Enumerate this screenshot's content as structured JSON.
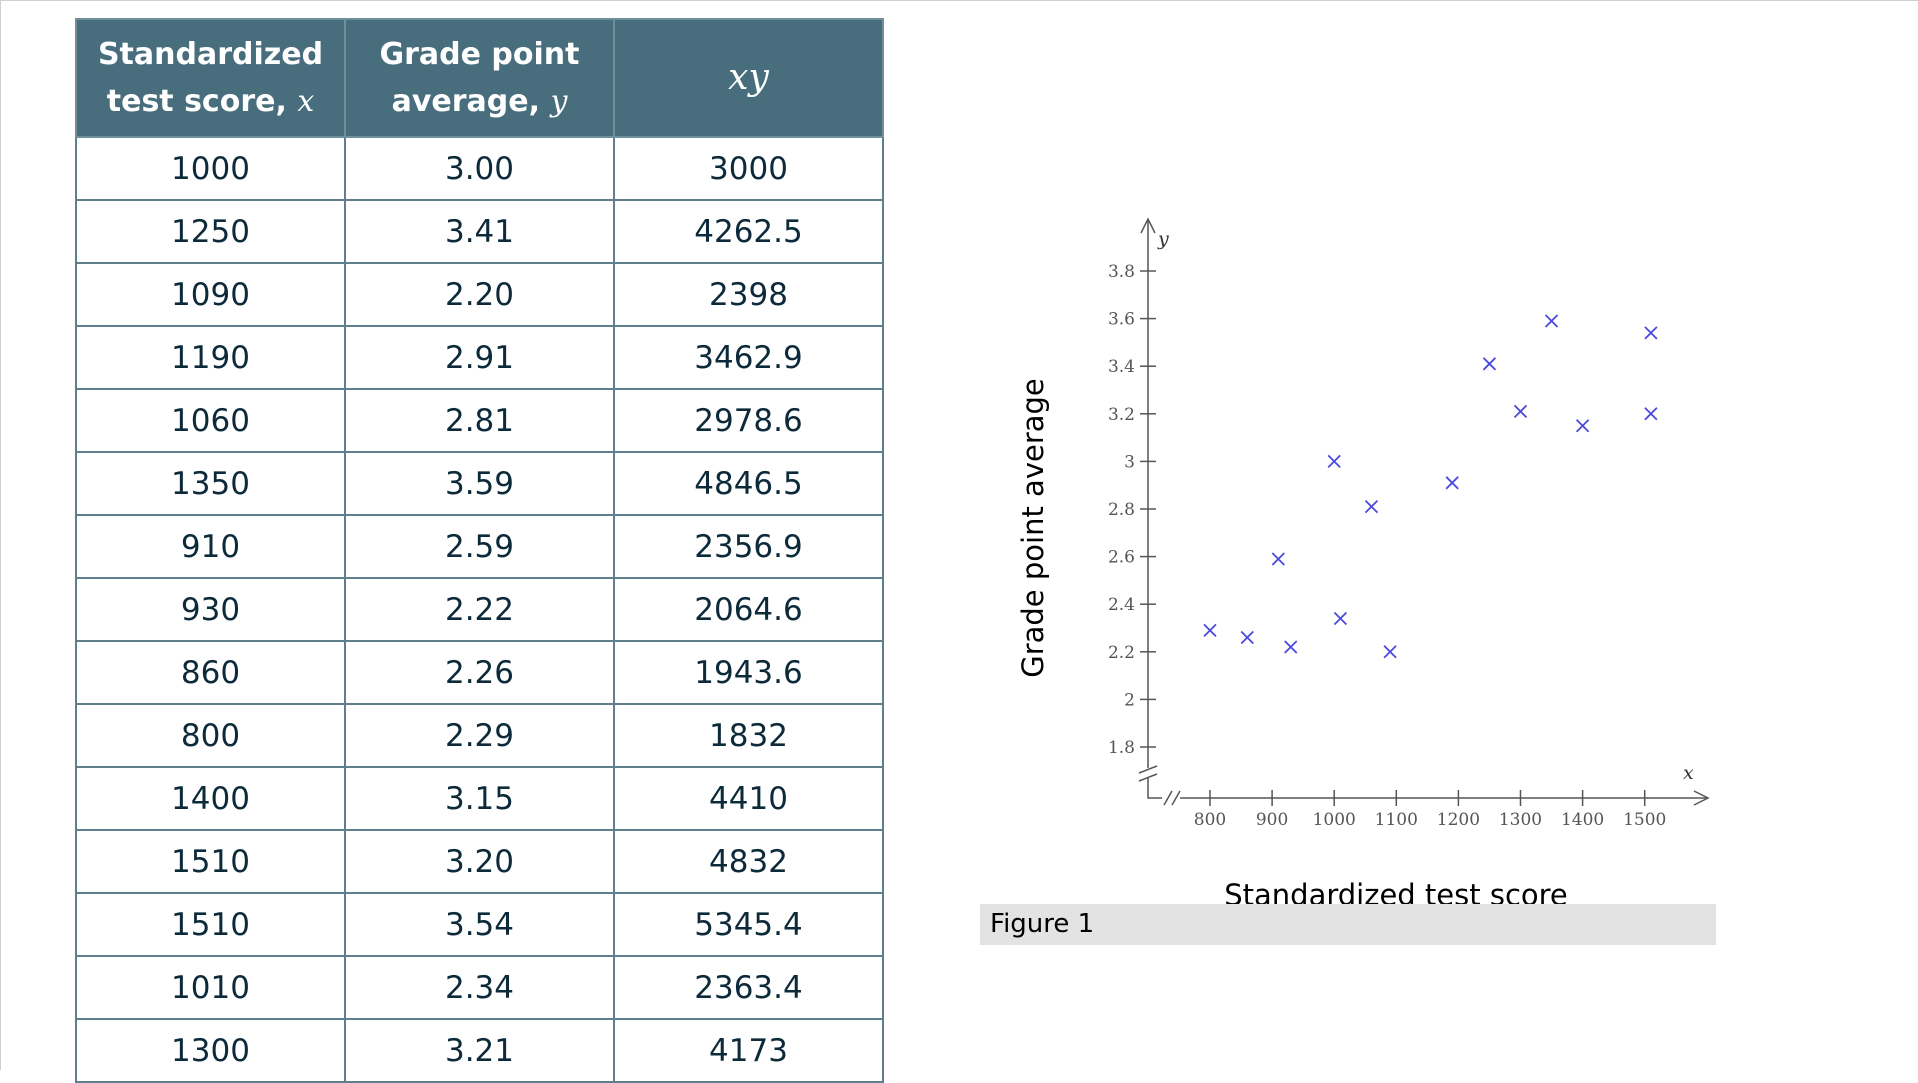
{
  "table": {
    "headers": [
      {
        "line1": "Standardized",
        "line2": "test score,",
        "var": "x"
      },
      {
        "line1": "Grade point",
        "line2": "average,",
        "var": "y"
      },
      {
        "var": "xy"
      }
    ],
    "rows": [
      [
        "1000",
        "3.00",
        "3000"
      ],
      [
        "1250",
        "3.41",
        "4262.5"
      ],
      [
        "1090",
        "2.20",
        "2398"
      ],
      [
        "1190",
        "2.91",
        "3462.9"
      ],
      [
        "1060",
        "2.81",
        "2978.6"
      ],
      [
        "1350",
        "3.59",
        "4846.5"
      ],
      [
        "910",
        "2.59",
        "2356.9"
      ],
      [
        "930",
        "2.22",
        "2064.6"
      ],
      [
        "860",
        "2.26",
        "1943.6"
      ],
      [
        "800",
        "2.29",
        "1832"
      ],
      [
        "1400",
        "3.15",
        "4410"
      ],
      [
        "1510",
        "3.20",
        "4832"
      ],
      [
        "1510",
        "3.54",
        "5345.4"
      ],
      [
        "1010",
        "2.34",
        "2363.4"
      ],
      [
        "1300",
        "3.21",
        "4173"
      ]
    ]
  },
  "chart_data": {
    "type": "scatter",
    "xlabel": "Standardized test score",
    "ylabel": "Grade point average",
    "x_axis_var": "x",
    "y_axis_var": "y",
    "xlim": [
      800,
      1500
    ],
    "ylim": [
      1.8,
      3.8
    ],
    "axis_break": true,
    "grid": false,
    "marker": "x",
    "marker_color": "#4a4adc",
    "x_ticks": [
      "800",
      "900",
      "1000",
      "1100",
      "1200",
      "1300",
      "1400",
      "1500"
    ],
    "y_ticks": [
      "1.8",
      "2",
      "2.2",
      "2.4",
      "2.6",
      "2.8",
      "3",
      "3.2",
      "3.4",
      "3.6",
      "3.8"
    ],
    "points": [
      {
        "x": 1000,
        "y": 3.0
      },
      {
        "x": 1250,
        "y": 3.41
      },
      {
        "x": 1090,
        "y": 2.2
      },
      {
        "x": 1190,
        "y": 2.91
      },
      {
        "x": 1060,
        "y": 2.81
      },
      {
        "x": 1350,
        "y": 3.59
      },
      {
        "x": 910,
        "y": 2.59
      },
      {
        "x": 930,
        "y": 2.22
      },
      {
        "x": 860,
        "y": 2.26
      },
      {
        "x": 800,
        "y": 2.29
      },
      {
        "x": 1400,
        "y": 3.15
      },
      {
        "x": 1510,
        "y": 3.2
      },
      {
        "x": 1510,
        "y": 3.54
      },
      {
        "x": 1010,
        "y": 2.34
      },
      {
        "x": 1300,
        "y": 3.21
      }
    ]
  },
  "figure": {
    "caption": "Figure 1"
  }
}
